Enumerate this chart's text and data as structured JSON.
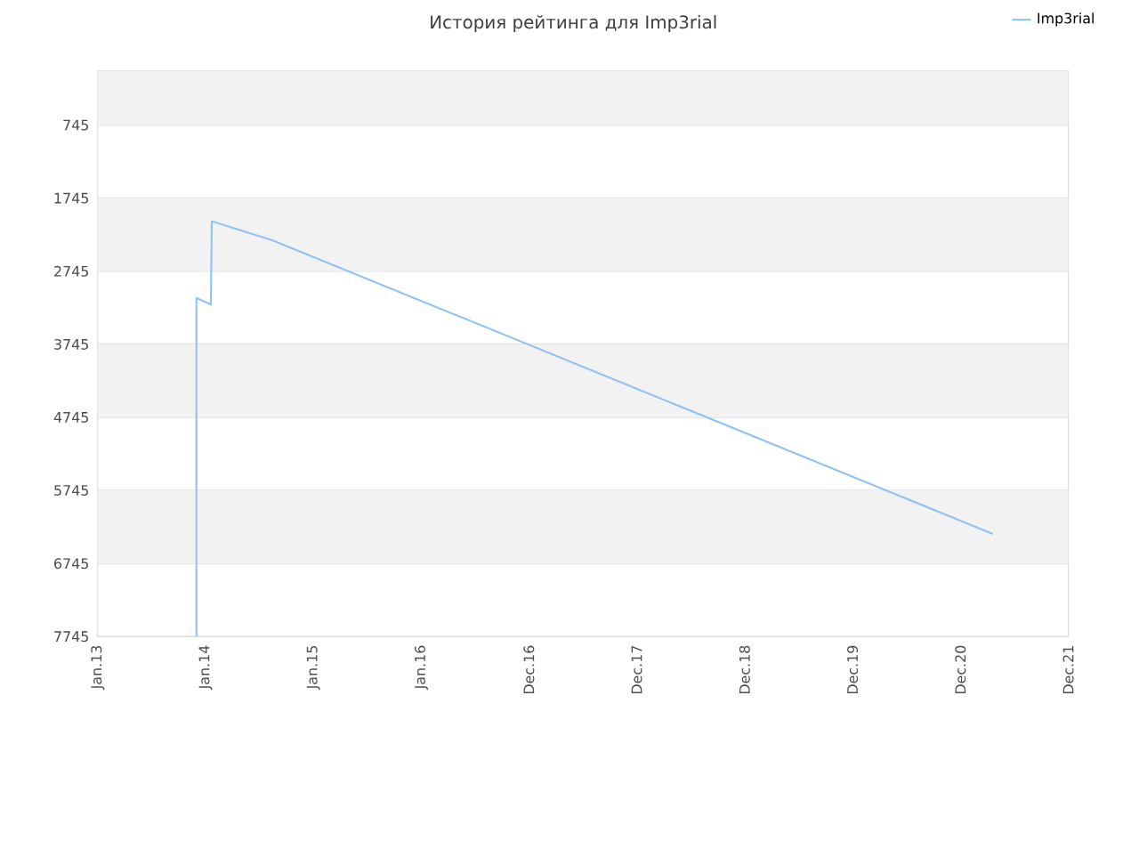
{
  "chart_data": {
    "type": "line",
    "title": "История рейтинга для Imp3rial",
    "x": [
      "2013-12-01",
      "2013-12-01",
      "2014-01-19",
      "2014-01-22",
      "2014-08-15",
      "2021-04-20"
    ],
    "series": [
      {
        "name": "Imp3rial",
        "color": "#90c3f5",
        "values": [
          7745,
          3110,
          3200,
          2060,
          2320,
          6340
        ]
      }
    ],
    "ylim": [
      7745,
      0
    ],
    "yticks": [
      745,
      1745,
      2745,
      3745,
      4745,
      5745,
      6745,
      7745
    ],
    "xlim": [
      "2013-01-01",
      "2021-12-31"
    ],
    "xticks": [
      {
        "value": "2013-01-01",
        "label": "Jan.13"
      },
      {
        "value": "2014-01-01",
        "label": "Jan.14"
      },
      {
        "value": "2015-01-01",
        "label": "Jan.15"
      },
      {
        "value": "2016-01-01",
        "label": "Jan.16"
      },
      {
        "value": "2016-12-31",
        "label": "Dec.16"
      },
      {
        "value": "2017-12-31",
        "label": "Dec.17"
      },
      {
        "value": "2018-12-31",
        "label": "Dec.18"
      },
      {
        "value": "2019-12-31",
        "label": "Dec.19"
      },
      {
        "value": "2020-12-31",
        "label": "Dec.20"
      },
      {
        "value": "2021-12-31",
        "label": "Dec.21"
      }
    ],
    "grid": "y",
    "legend": "top right",
    "marker": "none",
    "line_style": "solid"
  }
}
